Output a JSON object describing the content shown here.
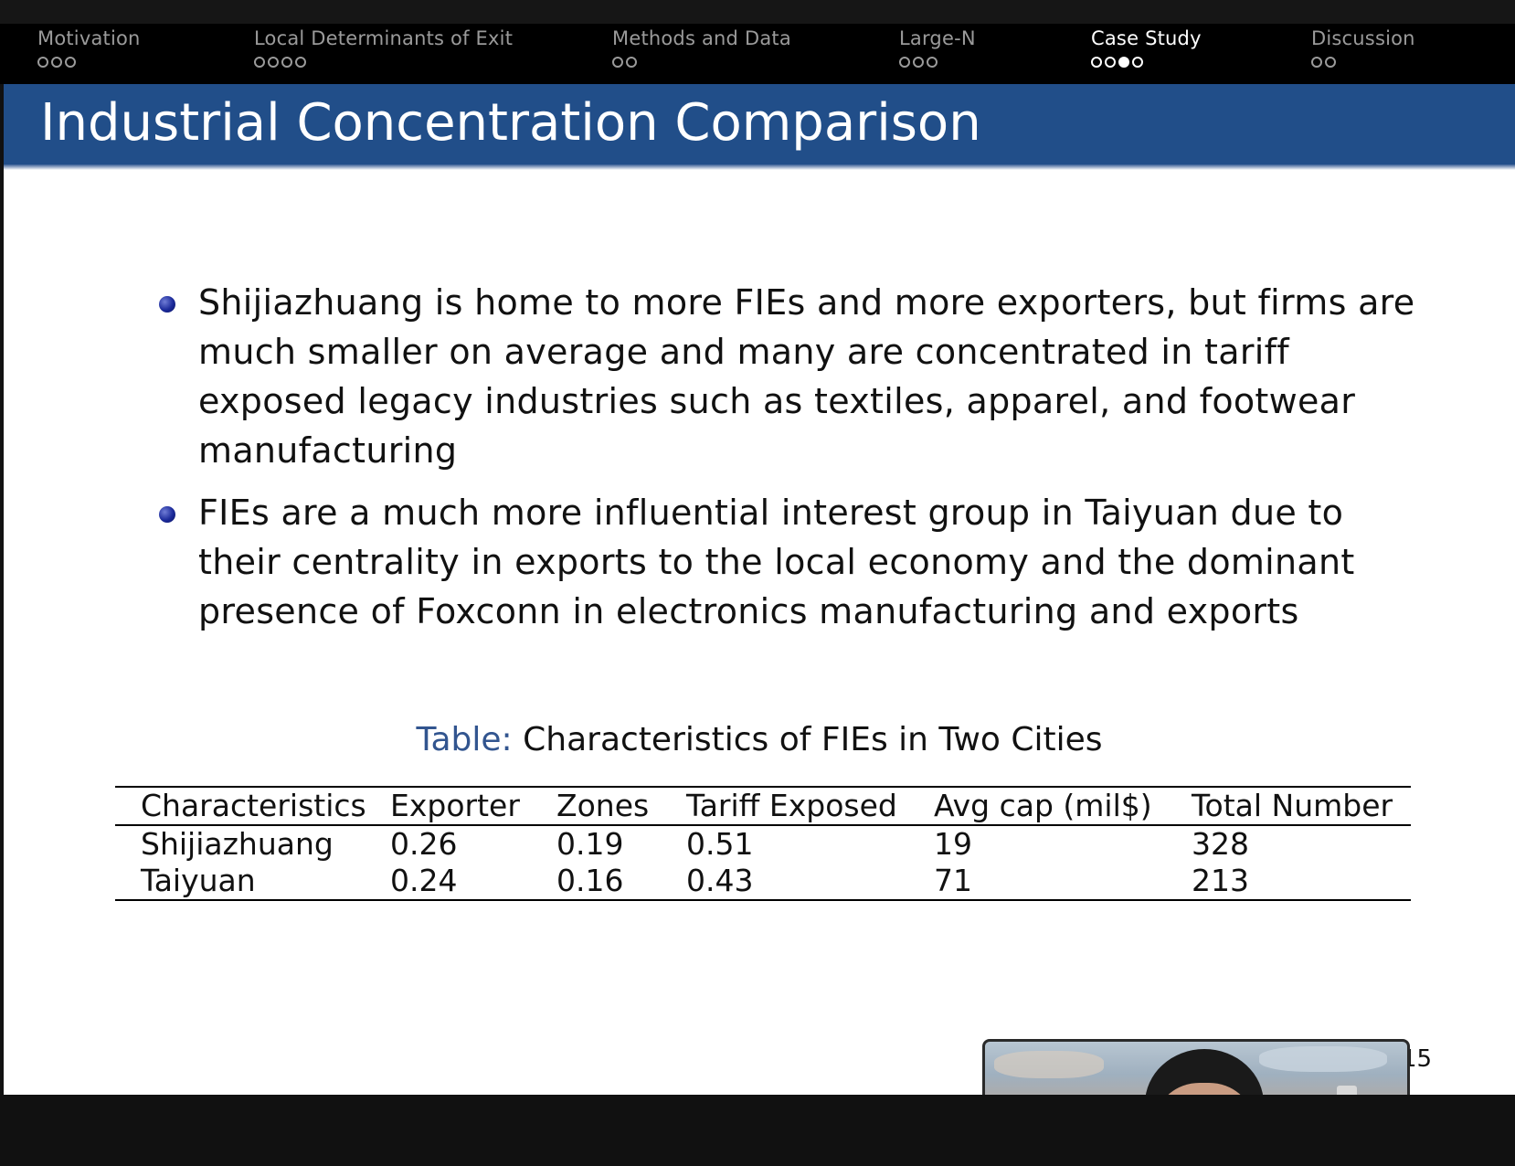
{
  "nav": {
    "sections": [
      {
        "label": "Motivation",
        "dots": 3,
        "filled": -1,
        "active": false
      },
      {
        "label": "Local Determinants of Exit",
        "dots": 4,
        "filled": -1,
        "active": false
      },
      {
        "label": "Methods and Data",
        "dots": 2,
        "filled": -1,
        "active": false
      },
      {
        "label": "Large-N",
        "dots": 3,
        "filled": -1,
        "active": false
      },
      {
        "label": "Case Study",
        "dots": 4,
        "filled": 2,
        "active": true
      },
      {
        "label": "Discussion",
        "dots": 2,
        "filled": -1,
        "active": false
      }
    ]
  },
  "slide": {
    "title": "Industrial Concentration Comparison",
    "bullets": [
      "Shijiazhuang is home to more FIEs and more exporters, but firms are much smaller on average and many are concentrated in tariff exposed legacy industries such as textiles, apparel, and footwear manufacturing",
      "FIEs are a much more influential interest group in Taiyuan due to their centrality in exports to the local economy and the dominant presence of Foxconn in electronics manufacturing and exports"
    ],
    "caption": {
      "label": "Table:",
      "text": "Characteristics of FIEs in Two Cities"
    },
    "table": {
      "headers": [
        "Characteristics",
        "Exporter",
        "Zones",
        "Tariff Exposed",
        "Avg cap (mil$)",
        "Total Number"
      ],
      "rows": [
        [
          "Shijiazhuang",
          "0.26",
          "0.19",
          "0.51",
          "19",
          "328"
        ],
        [
          "Taiyuan",
          "0.24",
          "0.16",
          "0.43",
          "71",
          "213"
        ]
      ]
    },
    "page_number": "15"
  },
  "colors": {
    "title_bar": "#214e89",
    "caption_label": "#32558f",
    "bullet": "#1b2a9a"
  }
}
